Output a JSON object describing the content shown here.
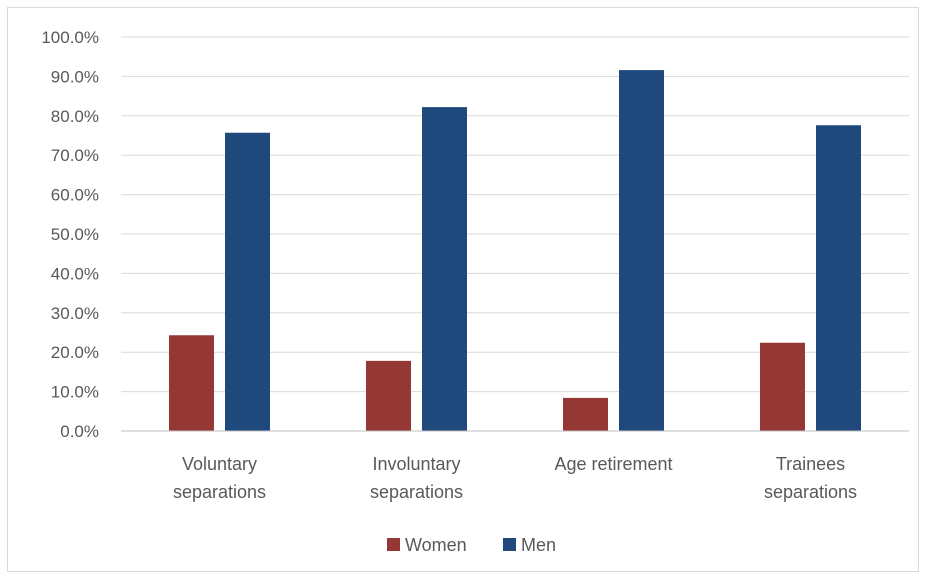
{
  "chart_data": {
    "type": "bar",
    "categories": [
      [
        "Voluntary",
        "separations"
      ],
      [
        "Involuntary",
        "separations"
      ],
      [
        "Age retirement"
      ],
      [
        "Trainees",
        "separations"
      ]
    ],
    "series": [
      {
        "name": "Women",
        "color": "#953735",
        "values": [
          24.3,
          17.8,
          8.4,
          22.4
        ]
      },
      {
        "name": "Men",
        "color": "#1f497d",
        "values": [
          75.7,
          82.2,
          91.6,
          77.6
        ]
      }
    ],
    "ylim": [
      0,
      100
    ],
    "yticks": [
      "0.0%",
      "10.0%",
      "20.0%",
      "30.0%",
      "40.0%",
      "50.0%",
      "60.0%",
      "70.0%",
      "80.0%",
      "90.0%",
      "100.0%"
    ],
    "grid": true,
    "legend_position": "bottom",
    "title": "",
    "xlabel": "",
    "ylabel": ""
  }
}
